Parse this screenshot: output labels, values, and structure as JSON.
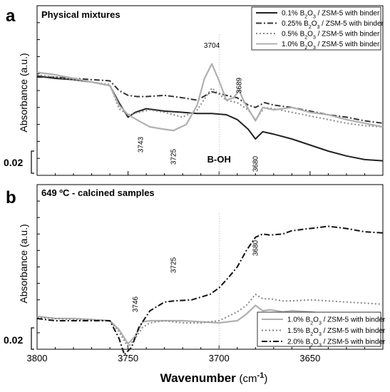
{
  "chart_data": [
    {
      "panel": "a",
      "type": "line",
      "title": "Physical mixtures",
      "xlabel": "Wavenumber (cm-1)",
      "xlabel_main": "Wavenumber",
      "xlabel_unit": "(cm",
      "xlabel_sup": "-1",
      "xlabel_close": ")",
      "ylabel": "Absorbance (a.u.)",
      "xlim": [
        3800,
        3610
      ],
      "ylim": [
        -0.04,
        0.1
      ],
      "scale_bar": "0.02",
      "legend_position": "top-right",
      "series": [
        {
          "name": "0.1% B2O3 / ZSM-5 with binder",
          "name_parts": [
            "0.1% B",
            "2",
            "O",
            "3",
            " / ZSM-5 with binder"
          ],
          "color": "#222222",
          "dash": "solid",
          "x": [
            3800,
            3790,
            3780,
            3770,
            3760,
            3755,
            3750,
            3746,
            3740,
            3730,
            3720,
            3712,
            3704,
            3696,
            3690,
            3684,
            3680,
            3676,
            3670,
            3660,
            3650,
            3640,
            3630,
            3620,
            3610
          ],
          "y": [
            0.042,
            0.04,
            0.039,
            0.037,
            0.034,
            0.02,
            0.008,
            0.012,
            0.015,
            0.013,
            0.012,
            0.011,
            0.011,
            0.01,
            0.006,
            -0.002,
            -0.01,
            -0.004,
            -0.006,
            -0.01,
            -0.015,
            -0.02,
            -0.024,
            -0.027,
            -0.028
          ]
        },
        {
          "name": "0.25% B2O3 / ZSM-5 with binder",
          "name_parts": [
            "0.25% B",
            "2",
            "O",
            "3",
            " / ZSM-5 with binder"
          ],
          "color": "#333333",
          "dash": "dashdot",
          "x": [
            3800,
            3790,
            3780,
            3770,
            3760,
            3755,
            3750,
            3745,
            3740,
            3730,
            3720,
            3712,
            3704,
            3696,
            3690,
            3684,
            3680,
            3675,
            3670,
            3660,
            3650,
            3640,
            3630,
            3620,
            3610
          ],
          "y": [
            0.041,
            0.041,
            0.04,
            0.039,
            0.038,
            0.03,
            0.026,
            0.025,
            0.025,
            0.026,
            0.024,
            0.022,
            0.029,
            0.026,
            0.024,
            0.018,
            0.016,
            0.02,
            0.018,
            0.016,
            0.013,
            0.01,
            0.008,
            0.005,
            0.003
          ]
        },
        {
          "name": "0.5% B2O3 / ZSM-5 with binder",
          "name_parts": [
            "0.5% B",
            "2",
            "O",
            "3",
            " / ZSM-5 with binder"
          ],
          "color": "#888888",
          "dash": "dot",
          "x": [
            3800,
            3790,
            3780,
            3770,
            3760,
            3755,
            3750,
            3744,
            3738,
            3730,
            3720,
            3712,
            3704,
            3696,
            3690,
            3684,
            3680,
            3675,
            3670,
            3660,
            3650,
            3640,
            3630,
            3620,
            3610
          ],
          "y": [
            0.043,
            0.041,
            0.039,
            0.037,
            0.035,
            0.015,
            0.01,
            0.012,
            0.014,
            0.012,
            0.008,
            0.014,
            0.032,
            0.022,
            0.02,
            0.014,
            0.006,
            0.016,
            0.015,
            0.012,
            0.009,
            0.006,
            0.003,
            0.001,
            0.0
          ]
        },
        {
          "name": "1.0% B2O3 / ZSM-5 with binder",
          "name_parts": [
            "1.0% B",
            "2",
            "O",
            "3",
            " / ZSM-5 with binder"
          ],
          "color": "#b0b0b0",
          "dash": "solid",
          "x": [
            3800,
            3790,
            3780,
            3770,
            3760,
            3755,
            3750,
            3743,
            3738,
            3730,
            3725,
            3718,
            3712,
            3708,
            3704,
            3700,
            3696,
            3692,
            3689,
            3686,
            3682,
            3680,
            3676,
            3670,
            3660,
            3650,
            3640,
            3630,
            3620,
            3610
          ],
          "y": [
            0.045,
            0.043,
            0.04,
            0.037,
            0.034,
            0.018,
            0.01,
            0.004,
            0.0,
            -0.002,
            -0.003,
            0.002,
            0.018,
            0.04,
            0.052,
            0.038,
            0.022,
            0.024,
            0.03,
            0.02,
            0.01,
            0.005,
            0.016,
            0.014,
            0.016,
            0.012,
            0.01,
            0.006,
            0.003,
            0.0
          ]
        }
      ],
      "annotations": [
        {
          "text": "3743",
          "x": 3743
        },
        {
          "text": "3725",
          "x": 3725
        },
        {
          "text": "3704",
          "x": 3704
        },
        {
          "text": "3689",
          "x": 3689
        },
        {
          "text": "3680",
          "x": 3680
        },
        {
          "text": "B-OH",
          "x": 3700
        }
      ]
    },
    {
      "panel": "b",
      "type": "line",
      "title": "649 ºC - calcined samples",
      "xlabel": "Wavenumber (cm-1)",
      "ylabel": "Absorbance (a.u.)",
      "xlim": [
        3800,
        3610
      ],
      "ylim": [
        -0.03,
        0.12
      ],
      "scale_bar": "0.02",
      "legend_position": "bottom-right",
      "series": [
        {
          "name": "1.0% B2O3 / ZSM-5 with binder",
          "name_parts": [
            "1.0% B",
            "2",
            "O",
            "3",
            " / ZSM-5 with binder"
          ],
          "color": "#b0b0b0",
          "dash": "solid",
          "x": [
            3800,
            3790,
            3780,
            3770,
            3760,
            3755,
            3750,
            3746,
            3742,
            3738,
            3730,
            3720,
            3710,
            3700,
            3690,
            3685,
            3680,
            3676,
            3672,
            3665,
            3660,
            3650,
            3640,
            3630,
            3620,
            3610
          ],
          "y": [
            0.0,
            -0.002,
            -0.002,
            -0.003,
            -0.004,
            -0.012,
            -0.025,
            -0.018,
            -0.005,
            -0.004,
            -0.004,
            -0.004,
            -0.005,
            -0.006,
            -0.004,
            0.002,
            0.01,
            0.005,
            0.006,
            0.004,
            0.005,
            0.004,
            0.002,
            0.001,
            0.0,
            -0.001
          ]
        },
        {
          "name": "1.5% B2O3 / ZSM-5 with binder",
          "name_parts": [
            "1.5% B",
            "2",
            "O",
            "3",
            " / ZSM-5 with binder"
          ],
          "color": "#888888",
          "dash": "dot",
          "x": [
            3800,
            3790,
            3780,
            3770,
            3760,
            3755,
            3750,
            3746,
            3742,
            3738,
            3730,
            3720,
            3710,
            3700,
            3690,
            3685,
            3680,
            3676,
            3672,
            3665,
            3660,
            3650,
            3640,
            3630,
            3620,
            3610
          ],
          "y": [
            -0.001,
            -0.002,
            -0.003,
            -0.003,
            -0.004,
            -0.014,
            -0.028,
            -0.02,
            -0.01,
            -0.006,
            -0.004,
            -0.006,
            -0.006,
            -0.004,
            0.004,
            0.01,
            0.02,
            0.016,
            0.016,
            0.014,
            0.014,
            0.015,
            0.014,
            0.013,
            0.012,
            0.011
          ]
        },
        {
          "name": "2.0% B2O3 / ZSM-5 with binder",
          "name_parts": [
            "2.0% B",
            "2",
            "O",
            "3",
            " / ZSM-5 with binder"
          ],
          "color": "#111111",
          "dash": "dashdot",
          "x": [
            3800,
            3790,
            3780,
            3770,
            3760,
            3755,
            3752,
            3748,
            3744,
            3738,
            3730,
            3725,
            3715,
            3705,
            3700,
            3695,
            3690,
            3685,
            3680,
            3676,
            3672,
            3665,
            3660,
            3650,
            3640,
            3630,
            3620,
            3610
          ],
          "y": [
            -0.002,
            -0.004,
            -0.004,
            -0.004,
            -0.004,
            -0.02,
            -0.035,
            -0.028,
            -0.01,
            0.005,
            0.013,
            0.014,
            0.015,
            0.02,
            0.026,
            0.035,
            0.045,
            0.06,
            0.072,
            0.075,
            0.074,
            0.075,
            0.078,
            0.08,
            0.082,
            0.08,
            0.077,
            0.076
          ]
        }
      ],
      "annotations": [
        {
          "text": "3746",
          "x": 3746
        },
        {
          "text": "3725",
          "x": 3725
        },
        {
          "text": "3680",
          "x": 3680
        }
      ]
    }
  ],
  "x_ticks": [
    "3800",
    "3750",
    "3700",
    "3650"
  ],
  "x_tick_values": [
    3800,
    3750,
    3700,
    3650
  ]
}
